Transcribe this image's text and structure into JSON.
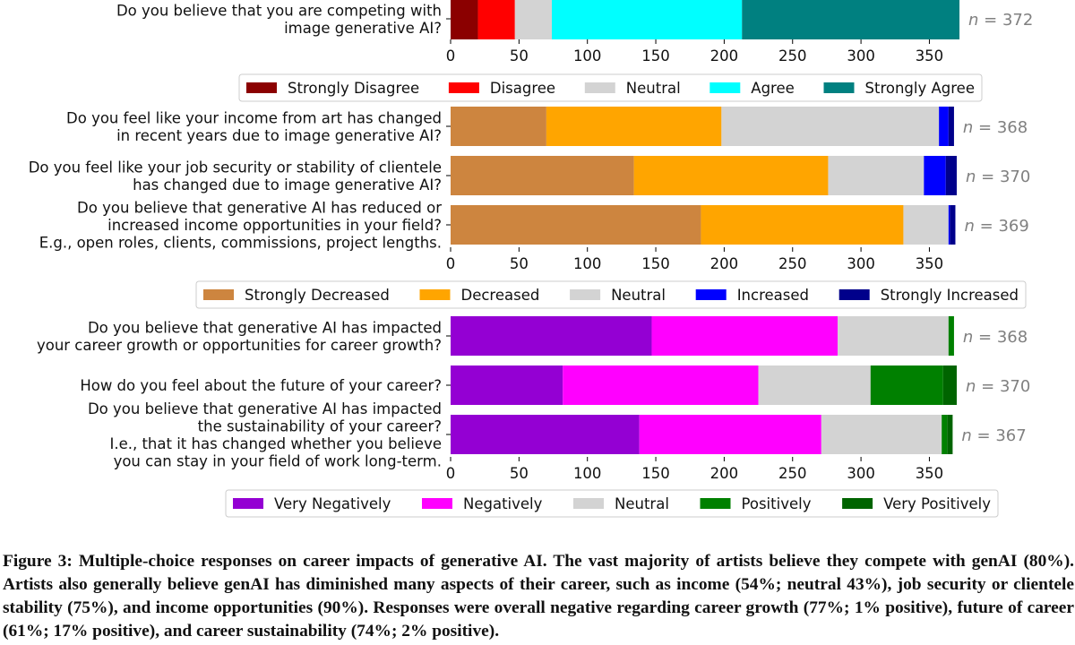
{
  "figure": {
    "caption": "Figure 3: Multiple-choice responses on career impacts of generative AI. The vast majority of artists believe they compete with genAI (80%). Artists also generally believe genAI has diminished many aspects of their career, such as income (54%; neutral 43%), job security or clientele stability (75%), and income opportunities (90%). Responses were overall negative regarding career growth (77%; 1% positive), future of career (61%; 17% positive), and career sustainability (74%; 2% positive)."
  },
  "chart_data": [
    {
      "type": "bar",
      "orientation": "horizontal",
      "stacked": true,
      "title": "",
      "xlabel": "",
      "ylabel": "",
      "xlim": [
        0,
        372
      ],
      "xticks": [
        0,
        50,
        100,
        150,
        200,
        250,
        300,
        350
      ],
      "grid": false,
      "legend_position": "bottom",
      "categories": [
        [
          "Do you believe that you are competing with",
          "image generative AI?"
        ]
      ],
      "n_labels": [
        "n = 372"
      ],
      "series": [
        {
          "name": "Strongly Disagree",
          "color": "#8b0000",
          "values": [
            20
          ]
        },
        {
          "name": "Disagree",
          "color": "#ff0000",
          "values": [
            27
          ]
        },
        {
          "name": "Neutral",
          "color": "#d3d3d3",
          "values": [
            27
          ]
        },
        {
          "name": "Agree",
          "color": "#00ffff",
          "values": [
            139
          ]
        },
        {
          "name": "Strongly Agree",
          "color": "#008080",
          "values": [
            159
          ]
        }
      ]
    },
    {
      "type": "bar",
      "orientation": "horizontal",
      "stacked": true,
      "title": "",
      "xlabel": "",
      "ylabel": "",
      "xlim": [
        0,
        372
      ],
      "xticks": [
        0,
        50,
        100,
        150,
        200,
        250,
        300,
        350
      ],
      "grid": false,
      "legend_position": "bottom",
      "categories": [
        [
          "Do you feel like your income from art has changed",
          "in recent years due to image generative AI?"
        ],
        [
          "Do you feel like your job security or stability of clientele",
          "has changed due to image generative AI?"
        ],
        [
          "Do you believe that generative AI has reduced or",
          "increased income opportunities in your field?",
          "E.g., open roles, clients, commissions, project lengths."
        ]
      ],
      "n_labels": [
        "n = 368",
        "n = 370",
        "n = 369"
      ],
      "series": [
        {
          "name": "Strongly Decreased",
          "color": "#cd853f",
          "values": [
            70,
            134,
            183
          ]
        },
        {
          "name": "Decreased",
          "color": "#ffa500",
          "values": [
            128,
            142,
            148
          ]
        },
        {
          "name": "Neutral",
          "color": "#d3d3d3",
          "values": [
            159,
            70,
            33
          ]
        },
        {
          "name": "Increased",
          "color": "#0000ff",
          "values": [
            7,
            16,
            1
          ]
        },
        {
          "name": "Strongly Increased",
          "color": "#00008b",
          "values": [
            4,
            8,
            4
          ]
        }
      ]
    },
    {
      "type": "bar",
      "orientation": "horizontal",
      "stacked": true,
      "title": "",
      "xlabel": "",
      "ylabel": "",
      "xlim": [
        0,
        372
      ],
      "xticks": [
        0,
        50,
        100,
        150,
        200,
        250,
        300,
        350
      ],
      "grid": false,
      "legend_position": "bottom",
      "categories": [
        [
          "Do you believe that generative AI has impacted",
          "your career growth or opportunities for career growth?"
        ],
        [
          "How do you feel about the future of your career?"
        ],
        [
          "Do you believe that generative AI has impacted",
          "the sustainability of your career?",
          "I.e., that it has changed whether you believe",
          "you can stay in your field of work long-term."
        ]
      ],
      "n_labels": [
        "n = 368",
        "n = 370",
        "n = 367"
      ],
      "series": [
        {
          "name": "Very Negatively",
          "color": "#9400d3",
          "values": [
            147,
            82,
            138
          ]
        },
        {
          "name": "Negatively",
          "color": "#ff00ff",
          "values": [
            136,
            143,
            133
          ]
        },
        {
          "name": "Neutral",
          "color": "#d3d3d3",
          "values": [
            81,
            82,
            88
          ]
        },
        {
          "name": "Positively",
          "color": "#008000",
          "values": [
            4,
            53,
            4
          ]
        },
        {
          "name": "Very Positively",
          "color": "#006400",
          "values": [
            0,
            10,
            4
          ]
        }
      ]
    }
  ]
}
